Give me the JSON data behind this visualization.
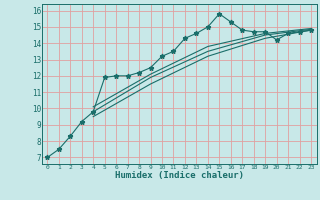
{
  "xlabel": "Humidex (Indice chaleur)",
  "bg_color": "#c8e8e8",
  "line_color": "#1a6e6a",
  "grid_color": "#e0a0a0",
  "xlim": [
    -0.5,
    23.5
  ],
  "ylim": [
    6.6,
    16.4
  ],
  "xticks": [
    0,
    1,
    2,
    3,
    4,
    5,
    6,
    7,
    8,
    9,
    10,
    11,
    12,
    13,
    14,
    15,
    16,
    17,
    18,
    19,
    20,
    21,
    22,
    23
  ],
  "yticks": [
    7,
    8,
    9,
    10,
    11,
    12,
    13,
    14,
    15,
    16
  ],
  "line1_x": [
    0,
    1,
    2,
    3,
    4,
    5,
    6,
    7,
    8,
    9,
    10,
    11,
    12,
    13,
    14,
    15,
    16,
    17,
    18,
    19,
    20,
    21,
    22,
    23
  ],
  "line1_y": [
    7.0,
    7.5,
    8.3,
    9.2,
    9.8,
    11.9,
    12.0,
    12.0,
    12.2,
    12.5,
    13.2,
    13.5,
    14.3,
    14.6,
    15.0,
    15.8,
    15.3,
    14.8,
    14.7,
    14.7,
    14.2,
    14.6,
    14.7,
    14.8
  ],
  "line2_x": [
    4,
    9,
    14,
    19,
    23
  ],
  "line2_y": [
    9.5,
    11.5,
    13.2,
    14.3,
    14.8
  ],
  "line3_x": [
    4,
    9,
    14,
    19,
    23
  ],
  "line3_y": [
    9.8,
    11.9,
    13.5,
    14.5,
    14.85
  ],
  "line4_x": [
    4,
    9,
    14,
    19,
    23
  ],
  "line4_y": [
    10.1,
    12.1,
    13.8,
    14.6,
    14.9
  ]
}
